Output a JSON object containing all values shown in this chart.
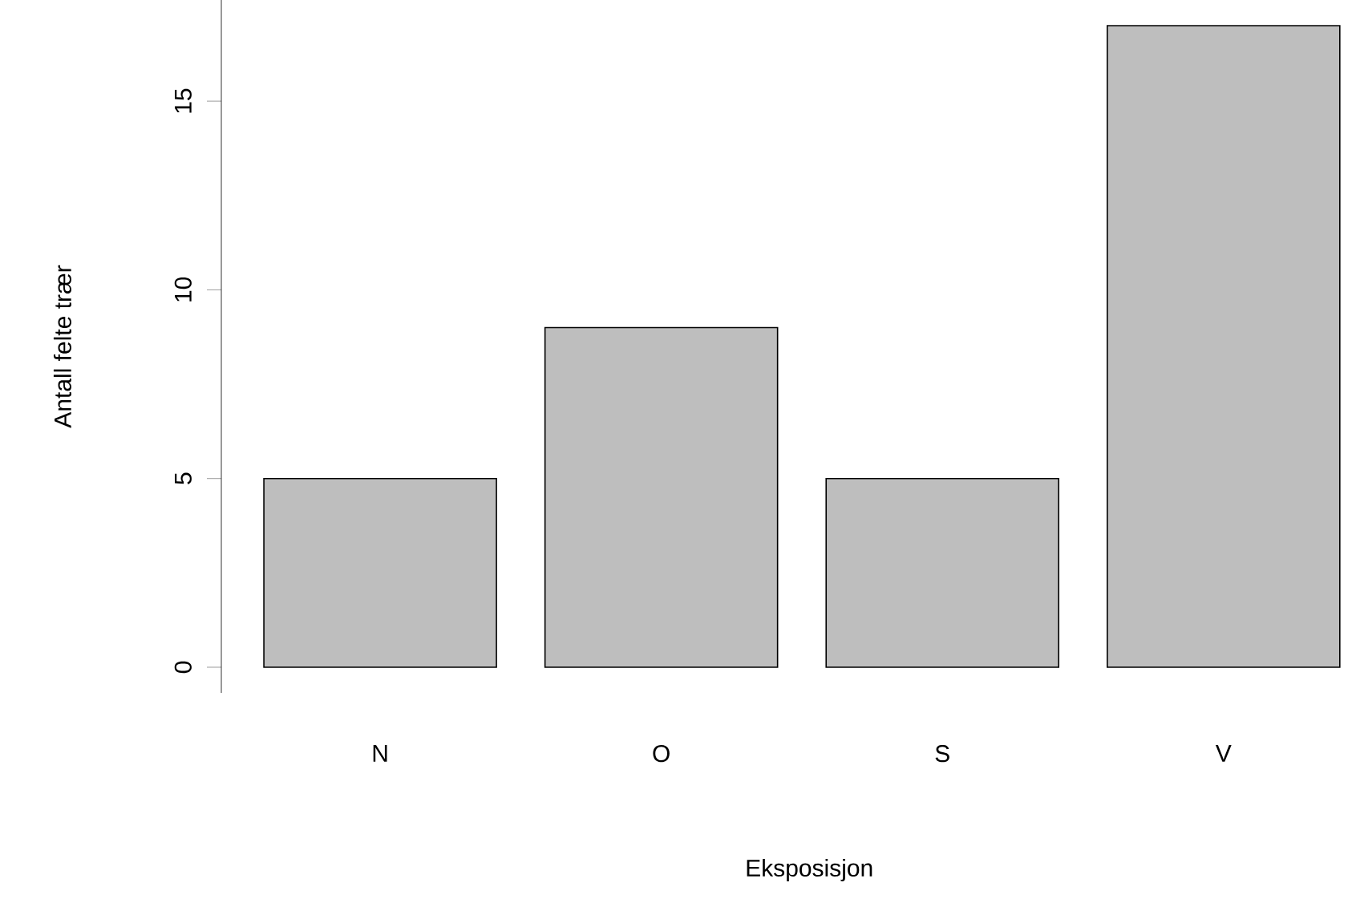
{
  "chart_data": {
    "type": "bar",
    "xlabel": "Eksposisjon",
    "ylabel": "Antall felte trær",
    "categories": [
      "N",
      "O",
      "S",
      "V"
    ],
    "values": [
      5,
      9,
      5,
      17
    ],
    "color": "#bebebe",
    "ylim": [
      0,
      17
    ],
    "yticks": [
      0,
      5,
      10,
      15
    ]
  }
}
